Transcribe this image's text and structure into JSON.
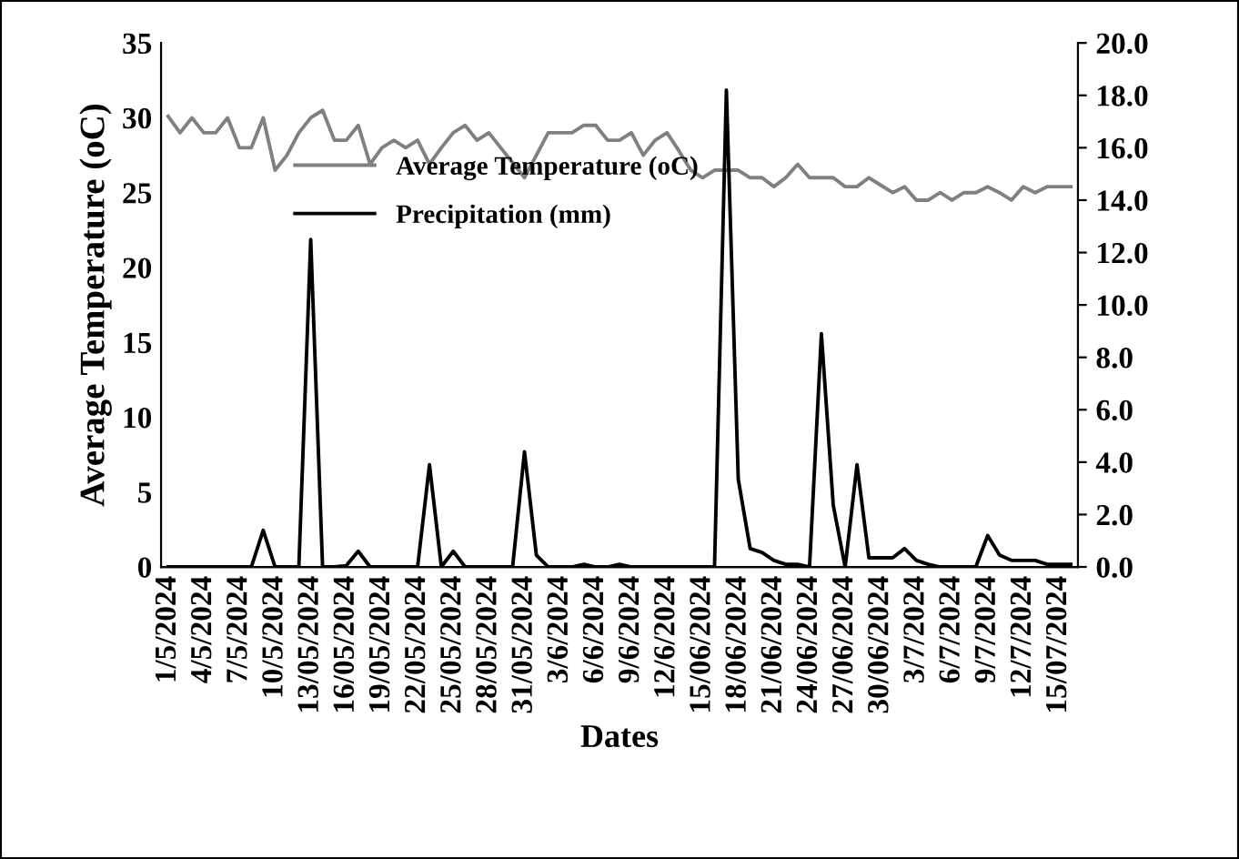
{
  "chart_data": {
    "type": "line",
    "xlabel": "Dates",
    "ylabel": "Average Temperature (oC)",
    "categories": [
      "1/5/2024",
      null,
      null,
      "4/5/2024",
      null,
      null,
      "7/5/2024",
      null,
      null,
      "10/5/2024",
      null,
      null,
      "13/05/2024",
      null,
      null,
      "16/05/2024",
      null,
      null,
      "19/05/2024",
      null,
      null,
      "22/05/2024",
      null,
      null,
      "25/05/2024",
      null,
      null,
      "28/05/2024",
      null,
      null,
      "31/05/2024",
      null,
      null,
      "3/6/2024",
      null,
      null,
      "6/6/2024",
      null,
      null,
      "9/6/2024",
      null,
      null,
      "12/6/2024",
      null,
      null,
      "15/06/2024",
      null,
      null,
      "18/06/2024",
      null,
      null,
      "21/06/2024",
      null,
      null,
      "24/06/2024",
      null,
      null,
      "27/06/2024",
      null,
      null,
      "30/06/2024",
      null,
      null,
      "3/7/2024",
      null,
      null,
      "6/7/2024",
      null,
      null,
      "9/7/2024",
      null,
      null,
      "12/7/2024",
      null,
      null,
      "15/07/2024",
      null
    ],
    "series": [
      {
        "name": "Average Temperature (oC)",
        "color": "#808080",
        "values": [
          30.1,
          29,
          30,
          29,
          29,
          30,
          28,
          28,
          30,
          26.5,
          27.5,
          29,
          30,
          30.5,
          28.5,
          28.5,
          29.5,
          26.9,
          28,
          28.5,
          28,
          28.5,
          26.9,
          28,
          29,
          29.5,
          28.5,
          29,
          28,
          27,
          26,
          27.5,
          29,
          29,
          29,
          29.5,
          29.5,
          28.5,
          28.5,
          29,
          27.5,
          28.5,
          29,
          27.8,
          26.5,
          26,
          26.5,
          26.5,
          26.5,
          26,
          26,
          25.4,
          26,
          26.9,
          26,
          26,
          26,
          25.4,
          25.4,
          26,
          25.5,
          25,
          25.4,
          24.5,
          24.5,
          25,
          24.5,
          25,
          25,
          25.4,
          25,
          24.5,
          25.4,
          25,
          25.4,
          25.4,
          25.4
        ]
      },
      {
        "name": "Precipitation (mm)",
        "color": "#000000",
        "axis": "y2",
        "values": [
          0,
          0,
          0,
          0,
          0,
          0,
          0,
          0,
          1.4,
          0,
          0,
          0,
          12.5,
          0,
          0,
          0.05,
          0.6,
          0,
          0,
          0,
          0,
          0,
          3.9,
          0,
          0.6,
          0,
          0,
          0,
          0,
          0,
          4.4,
          0.45,
          0,
          0,
          0,
          0.1,
          0,
          0,
          0.1,
          0,
          0,
          0,
          0,
          0,
          0,
          0,
          0,
          18.2,
          3.35,
          0.7,
          0.55,
          0.25,
          0.1,
          0.1,
          0,
          8.9,
          2.35,
          0,
          3.9,
          0.35,
          0.35,
          0.35,
          0.7,
          0.25,
          0.1,
          0,
          0,
          0,
          0,
          1.2,
          0.45,
          0.25,
          0.25,
          0.25,
          0.1,
          0.1,
          0.1
        ]
      }
    ],
    "ylim": [
      0,
      35
    ],
    "yticks": [
      0,
      5,
      10,
      15,
      20,
      25,
      30,
      35
    ],
    "y2lim": [
      0,
      20
    ],
    "y2ticks": [
      {
        "value": 0,
        "label": "0.0"
      },
      {
        "value": 2,
        "label": "2.0"
      },
      {
        "value": 4,
        "label": "4.0"
      },
      {
        "value": 6,
        "label": "6.0"
      },
      {
        "value": 8,
        "label": "8.0"
      },
      {
        "value": 10,
        "label": "10.0"
      },
      {
        "value": 12,
        "label": "12.0"
      },
      {
        "value": 14,
        "label": "14.0"
      },
      {
        "value": 16,
        "label": "16.0"
      },
      {
        "value": 18,
        "label": "18.0"
      },
      {
        "value": 20,
        "label": "20.0"
      }
    ],
    "legend": "top left",
    "grid": false,
    "marker": "none",
    "line_style": "solid"
  }
}
